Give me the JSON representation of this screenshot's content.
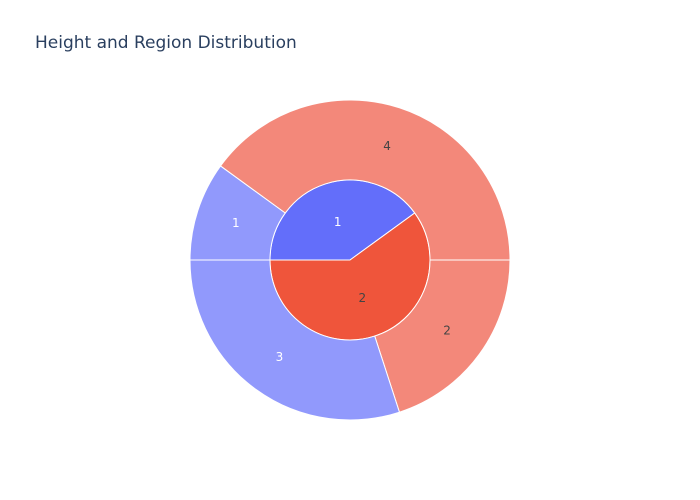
{
  "chart_data": {
    "type": "sunburst",
    "title": "Height and Region Distribution",
    "rings": [
      {
        "level": "inner",
        "segments": [
          {
            "label": "1",
            "value": 4,
            "color": "#636efa",
            "label_color": "#ffffff"
          },
          {
            "label": "2",
            "value": 6,
            "color": "#ef553b",
            "label_color": "#444444"
          }
        ]
      },
      {
        "level": "outer",
        "segments": [
          {
            "parent": "1",
            "label": "1",
            "value": 1,
            "color": "#9199fc",
            "label_color": "#ffffff"
          },
          {
            "parent": "2",
            "label": "4",
            "value": 4,
            "color": "#f3887a",
            "label_color": "#444444"
          },
          {
            "parent": "2",
            "label": "2",
            "value": 2,
            "color": "#f3887a",
            "label_color": "#444444"
          },
          {
            "parent": "1",
            "label": "3",
            "value": 3,
            "color": "#9199fc",
            "label_color": "#ffffff"
          }
        ]
      }
    ]
  }
}
